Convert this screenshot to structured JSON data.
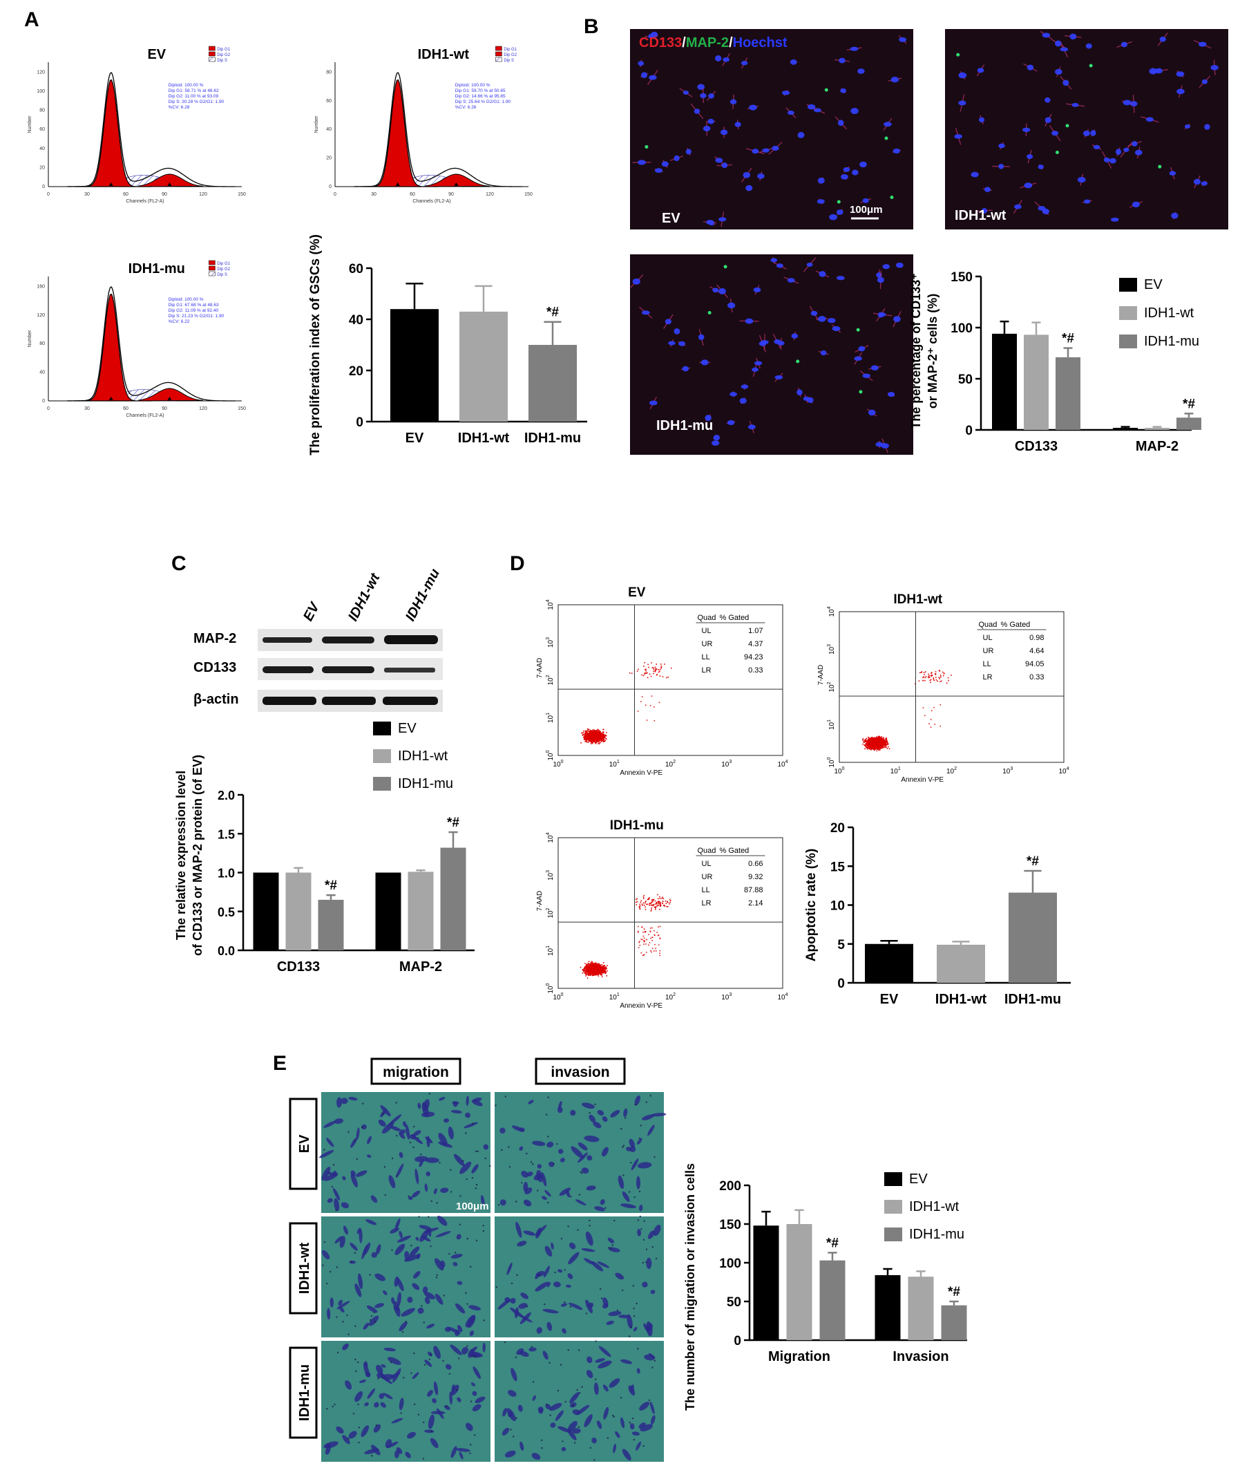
{
  "panel_labels": {
    "A": "A",
    "B": "B",
    "C": "C",
    "D": "D",
    "E": "E"
  },
  "colors": {
    "ev": "#000000",
    "wt": "#a6a6a6",
    "mu": "#7f7f7f",
    "flow_red": "#dd0000",
    "fluor_bg": "#1a0a14",
    "transwell": "#3c8a82"
  },
  "panel_a": {
    "histograms": [
      {
        "title": "EV",
        "legend": [
          "Dip G1",
          "Dip G2",
          "Dip S"
        ],
        "stats": [
          "Diploid: 100.00 %",
          "Dip G1: 58.71 % at 48.62",
          "Dip G2: 11.00 % at 93.09",
          "Dip S: 30.28 %  G2/G1: 1.90",
          "%CV: 6.28"
        ],
        "xlabel": "Channels (FL2-A)",
        "ylabel": "Number",
        "xticks": [
          "0",
          "30",
          "60",
          "90",
          "120",
          "150"
        ],
        "yticks": [
          "0",
          "20",
          "40",
          "60",
          "80",
          "100",
          "120"
        ]
      },
      {
        "title": "IDH1-wt",
        "legend": [
          "Dip G1",
          "Dip G2",
          "Dip S"
        ],
        "stats": [
          "Diploid: 100.00 %",
          "Dip G1: 59.70 % at 50.65",
          "Dip G2: 14.66 % at 95.85",
          "Dip S: 25.64 %  G2/G1: 1.90",
          "%CV: 6.26"
        ],
        "xlabel": "Channels (FL2-A)",
        "ylabel": "Number",
        "xticks": [
          "0",
          "30",
          "60",
          "90",
          "120",
          "150"
        ],
        "yticks": [
          "0",
          "20",
          "40",
          "60",
          "80"
        ]
      },
      {
        "title": "IDH1-mu",
        "legend": [
          "Dip G1",
          "Dip G2",
          "Dip S"
        ],
        "stats": [
          "Diploid: 100.00 %",
          "Dip G1: 67.68 % at 48.63",
          "Dip G2: 11.09 % at 92.40",
          "Dip S: 21.23 %  G2/G1: 1.90",
          "%CV: 6.22"
        ],
        "xlabel": "Channels (FL2-A)",
        "ylabel": "Number",
        "xticks": [
          "0",
          "30",
          "60",
          "90",
          "120",
          "150"
        ],
        "yticks": [
          "0",
          "40",
          "80",
          "120",
          "160"
        ]
      }
    ]
  },
  "panel_b": {
    "stain_label": {
      "cd133": "CD133",
      "slash1": "/",
      "map2": "MAP-2",
      "slash2": "/",
      "hoechst": "Hoechst"
    },
    "image_labels": [
      "EV",
      "IDH1-wt",
      "IDH1-mu"
    ],
    "scale": "100μm"
  },
  "panel_c": {
    "lane_labels": [
      "EV",
      "IDH1-wt",
      "IDH1-mu"
    ],
    "band_labels": [
      "MAP-2",
      "CD133",
      "β-actin"
    ]
  },
  "panel_d": {
    "plots": [
      {
        "title": "EV",
        "header": [
          "Quad",
          "% Gated"
        ],
        "rows": [
          [
            "UL",
            "1.07"
          ],
          [
            "UR",
            "4.37"
          ],
          [
            "LL",
            "94.23"
          ],
          [
            "LR",
            "0.33"
          ]
        ],
        "xlabel": "Annexin V-PE",
        "ylabel": "7-AAD"
      },
      {
        "title": "IDH1-wt",
        "header": [
          "Quad",
          "% Gated"
        ],
        "rows": [
          [
            "UL",
            "0.98"
          ],
          [
            "UR",
            "4.64"
          ],
          [
            "LL",
            "94.05"
          ],
          [
            "LR",
            "0.33"
          ]
        ],
        "xlabel": "Annexin V-PE",
        "ylabel": "7-AAD"
      },
      {
        "title": "IDH1-mu",
        "header": [
          "Quad",
          "% Gated"
        ],
        "rows": [
          [
            "UL",
            "0.66"
          ],
          [
            "UR",
            "9.32"
          ],
          [
            "LL",
            "87.88"
          ],
          [
            "LR",
            "2.14"
          ]
        ],
        "xlabel": "Annexin V-PE",
        "ylabel": "7-AAD"
      }
    ],
    "log_ticks": [
      "10",
      "10",
      "10",
      "10",
      "10"
    ],
    "log_exps": [
      "0",
      "1",
      "2",
      "3",
      "4"
    ]
  },
  "panel_e": {
    "col_labels": [
      "migration",
      "invasion"
    ],
    "row_labels": [
      "EV",
      "IDH1-wt",
      "IDH1-mu"
    ],
    "scale": "100μm"
  },
  "chart_data": [
    {
      "type": "bar",
      "id": "prolif",
      "categories": [
        "EV",
        "IDH1-wt",
        "IDH1-mu"
      ],
      "values": [
        44,
        43,
        30
      ],
      "errors": [
        10,
        10,
        9
      ],
      "annotations": [
        "",
        "",
        "*#"
      ],
      "ylabel": "The proliferation index of GSCs (%)",
      "yticks": [
        0,
        20,
        40,
        60
      ],
      "ylim": [
        0,
        60
      ]
    },
    {
      "type": "bar",
      "id": "pct",
      "groups": [
        "CD133",
        "MAP-2"
      ],
      "series": [
        {
          "name": "EV",
          "values": [
            94,
            2
          ],
          "errors": [
            12,
            1
          ]
        },
        {
          "name": "IDH1-wt",
          "values": [
            93,
            2
          ],
          "errors": [
            12,
            1
          ]
        },
        {
          "name": "IDH1-mu",
          "values": [
            71,
            12
          ],
          "errors": [
            9,
            4
          ]
        }
      ],
      "annotations": [
        [
          "",
          "",
          "*#"
        ],
        [
          "",
          "",
          "*#"
        ]
      ],
      "ylabel_lines": [
        "The percentage of CD133⁺",
        "or MAP-2⁺ cells (%)"
      ],
      "yticks": [
        0,
        50,
        100,
        150
      ],
      "ylim": [
        0,
        150
      ]
    },
    {
      "type": "bar",
      "id": "wb",
      "groups": [
        "CD133",
        "MAP-2"
      ],
      "series": [
        {
          "name": "EV",
          "values": [
            1.0,
            1.0
          ],
          "errors": [
            0,
            0
          ]
        },
        {
          "name": "IDH1-wt",
          "values": [
            1.0,
            1.01
          ],
          "errors": [
            0.06,
            0.02
          ]
        },
        {
          "name": "IDH1-mu",
          "values": [
            0.65,
            1.32
          ],
          "errors": [
            0.06,
            0.2
          ]
        }
      ],
      "annotations": [
        [
          "",
          "",
          "*#"
        ],
        [
          "",
          "",
          "*#"
        ]
      ],
      "ylabel_lines": [
        "The relative expression level",
        "of CD133 or MAP-2 protein (of EV)"
      ],
      "yticks": [
        "0.0",
        "0.5",
        "1.0",
        "1.5",
        "2.0"
      ],
      "ylim": [
        0,
        2
      ]
    },
    {
      "type": "bar",
      "id": "apop",
      "categories": [
        "EV",
        "IDH1-wt",
        "IDH1-mu"
      ],
      "values": [
        5,
        4.9,
        11.6
      ],
      "errors": [
        0.4,
        0.4,
        2.8
      ],
      "annotations": [
        "",
        "",
        "*#"
      ],
      "ylabel": "Apoptotic rate (%)",
      "yticks": [
        0,
        5,
        10,
        15,
        20
      ],
      "ylim": [
        0,
        20
      ]
    },
    {
      "type": "bar",
      "id": "migr",
      "groups": [
        "Migration",
        "Invasion"
      ],
      "series": [
        {
          "name": "EV",
          "values": [
            148,
            84
          ],
          "errors": [
            18,
            8
          ]
        },
        {
          "name": "IDH1-wt",
          "values": [
            150,
            82
          ],
          "errors": [
            18,
            7
          ]
        },
        {
          "name": "IDH1-mu",
          "values": [
            103,
            45
          ],
          "errors": [
            10,
            5
          ]
        }
      ],
      "annotations": [
        [
          "",
          "",
          "*#"
        ],
        [
          "",
          "",
          "*#"
        ]
      ],
      "ylabel": "The number of migration or invasion cells",
      "yticks": [
        0,
        50,
        100,
        150,
        200
      ],
      "ylim": [
        0,
        200
      ]
    }
  ]
}
